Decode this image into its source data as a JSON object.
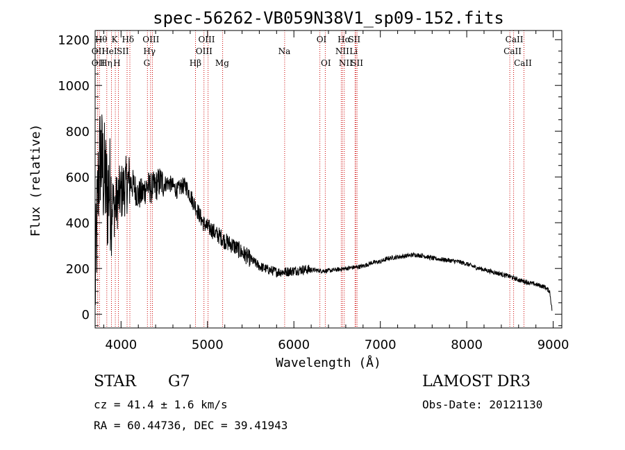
{
  "chart_data": {
    "type": "line",
    "title": "spec-56262-VB059N38V1_sp09-152.fits",
    "xlabel": "Wavelength (Å)",
    "ylabel": "Flux (relative)",
    "xlim": [
      3700,
      9100
    ],
    "ylim": [
      -60,
      1240
    ],
    "xticks": [
      4000,
      5000,
      6000,
      7000,
      8000,
      9000
    ],
    "yticks": [
      0,
      200,
      400,
      600,
      800,
      1000,
      1200
    ],
    "grid": false,
    "line_color": "#000000",
    "marker_color": "#cc0000",
    "series": [
      {
        "name": "flux",
        "x": [
          3700,
          3720,
          3740,
          3760,
          3780,
          3800,
          3820,
          3840,
          3860,
          3880,
          3900,
          3920,
          3940,
          3960,
          3980,
          4000,
          4050,
          4100,
          4150,
          4200,
          4250,
          4300,
          4350,
          4400,
          4450,
          4500,
          4550,
          4600,
          4650,
          4700,
          4750,
          4800,
          4850,
          4900,
          4950,
          5000,
          5050,
          5100,
          5150,
          5200,
          5300,
          5400,
          5500,
          5600,
          5700,
          5800,
          5900,
          6000,
          6100,
          6200,
          6300,
          6400,
          6500,
          6600,
          6700,
          6800,
          6900,
          7000,
          7100,
          7200,
          7300,
          7400,
          7500,
          7600,
          7700,
          7800,
          7900,
          8000,
          8100,
          8200,
          8300,
          8400,
          8500,
          8600,
          8700,
          8800,
          8900,
          8960,
          8990
        ],
        "y": [
          100,
          380,
          600,
          700,
          650,
          600,
          580,
          500,
          560,
          520,
          500,
          460,
          480,
          500,
          520,
          530,
          560,
          580,
          560,
          520,
          530,
          560,
          550,
          560,
          580,
          570,
          575,
          560,
          540,
          560,
          560,
          520,
          480,
          440,
          400,
          380,
          370,
          350,
          340,
          320,
          300,
          270,
          240,
          210,
          195,
          185,
          185,
          190,
          195,
          195,
          190,
          190,
          195,
          200,
          205,
          210,
          225,
          230,
          245,
          250,
          255,
          260,
          255,
          245,
          240,
          235,
          230,
          220,
          205,
          195,
          185,
          175,
          165,
          150,
          140,
          130,
          120,
          100,
          10
        ]
      }
    ],
    "lines": [
      {
        "name": "OII",
        "wave": 3727,
        "row": 2,
        "label_x": 3735
      },
      {
        "name": "Hθ",
        "wave": 3750,
        "row": 1,
        "label_x": 3770
      },
      {
        "name": "OII",
        "wave": 3729,
        "row": 3,
        "label_x": 3735
      },
      {
        "name": "Hη",
        "wave": 3835,
        "row": 3,
        "label_x": 3828
      },
      {
        "name": "K",
        "wave": 3934,
        "row": 1,
        "label_x": 3925
      },
      {
        "name": "HeI",
        "wave": 3889,
        "row": 2,
        "label_x": 3865
      },
      {
        "name": "SII",
        "wave": 4070,
        "row": 2,
        "label_x": 4020
      },
      {
        "name": "H",
        "wave": 3969,
        "row": 3,
        "label_x": 3952
      },
      {
        "name": "Hδ",
        "wave": 4102,
        "row": 1,
        "label_x": 4080
      },
      {
        "name": "OIII",
        "wave": 4363,
        "row": 1,
        "label_x": 4345
      },
      {
        "name": "Hγ",
        "wave": 4341,
        "row": 2,
        "label_x": 4328
      },
      {
        "name": "G",
        "wave": 4305,
        "row": 3,
        "label_x": 4298
      },
      {
        "name": "OIII",
        "wave": 4959,
        "row": 1,
        "label_x": 4990
      },
      {
        "name": "OIII",
        "wave": 5007,
        "row": 2,
        "label_x": 4960
      },
      {
        "name": "Hβ",
        "wave": 4861,
        "row": 3,
        "label_x": 4860
      },
      {
        "name": "Mg",
        "wave": 5175,
        "row": 3,
        "label_x": 5170
      },
      {
        "name": "Na",
        "wave": 5893,
        "row": 2,
        "label_x": 5890
      },
      {
        "name": "OI",
        "wave": 6300,
        "row": 1,
        "label_x": 6320
      },
      {
        "name": "OI",
        "wave": 6363,
        "row": 3,
        "label_x": 6370
      },
      {
        "name": "Hα",
        "wave": 6563,
        "row": 1,
        "label_x": 6580
      },
      {
        "name": "NII",
        "wave": 6548,
        "row": 2,
        "label_x": 6560
      },
      {
        "name": "NII",
        "wave": 6583,
        "row": 3,
        "label_x": 6600
      },
      {
        "name": "SII",
        "wave": 6717,
        "row": 1,
        "label_x": 6700
      },
      {
        "name": "Li",
        "wave": 6708,
        "row": 2,
        "label_x": 6690
      },
      {
        "name": "SII",
        "wave": 6731,
        "row": 3,
        "label_x": 6730
      },
      {
        "name": "CaII",
        "wave": 8498,
        "row": 1,
        "label_x": 8550
      },
      {
        "name": "CaII",
        "wave": 8542,
        "row": 2,
        "label_x": 8530
      },
      {
        "name": "CaII",
        "wave": 8662,
        "row": 3,
        "label_x": 8650
      }
    ]
  },
  "info": {
    "class_label": "STAR",
    "subclass": "G7",
    "survey": "LAMOST DR3",
    "cz": "cz = 41.4 ± 1.6 km/s",
    "obs_date": "Obs-Date: 20121130",
    "radec": "RA =  60.44736, DEC =  39.41943"
  }
}
